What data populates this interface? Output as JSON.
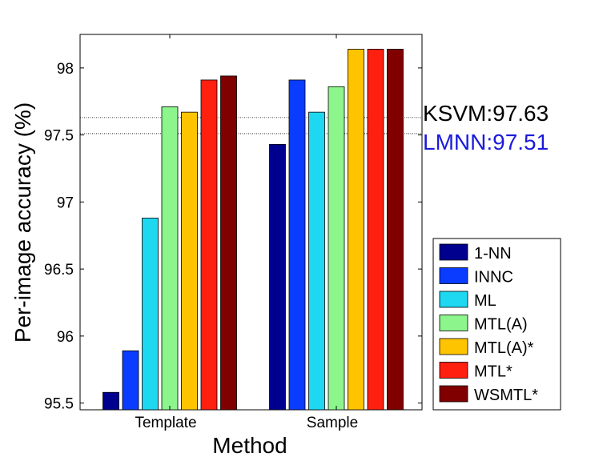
{
  "chart_data": {
    "type": "bar",
    "title": "",
    "xlabel": "Method",
    "ylabel": "Per-image accuracy (%)",
    "ylim": [
      95.45,
      98.25
    ],
    "yticks": [
      95.5,
      96,
      96.5,
      97,
      97.5,
      98
    ],
    "ytick_labels": [
      "95.5",
      "96",
      "96.5",
      "97",
      "97.5",
      "98"
    ],
    "categories": [
      "Template",
      "Sample"
    ],
    "series": [
      {
        "name": "1-NN",
        "color": "#00008f",
        "values": [
          95.58,
          97.43
        ]
      },
      {
        "name": "INNC",
        "color": "#0a3cff",
        "values": [
          95.89,
          97.91
        ]
      },
      {
        "name": "ML",
        "color": "#1ed7f0",
        "values": [
          96.88,
          97.67
        ]
      },
      {
        "name": "MTL(A)",
        "color": "#8cf58c",
        "values": [
          97.71,
          97.86
        ]
      },
      {
        "name": "MTL(A)*",
        "color": "#ffc400",
        "values": [
          97.67,
          98.14
        ]
      },
      {
        "name": "MTL*",
        "color": "#ff2010",
        "values": [
          97.91,
          98.14
        ]
      },
      {
        "name": "WSMTL*",
        "color": "#800000",
        "values": [
          97.94,
          98.14
        ]
      }
    ],
    "reference_lines": [
      {
        "label": "KSVM:97.63",
        "value": 97.63,
        "color": "#000000"
      },
      {
        "label": "LMNN:97.51",
        "value": 97.51,
        "color": "#1a1adc"
      }
    ],
    "grid": false,
    "legend_position": "bottom-right, outside"
  }
}
